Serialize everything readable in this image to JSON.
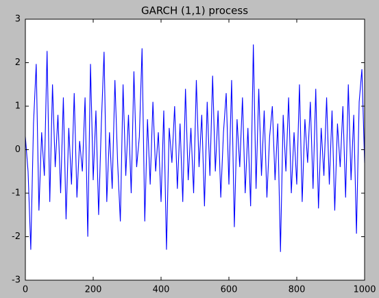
{
  "chart_data": {
    "type": "line",
    "title": "GARCH (1,1) process",
    "x": [
      0,
      8,
      16,
      24,
      32,
      40,
      48,
      56,
      64,
      72,
      80,
      88,
      96,
      104,
      112,
      120,
      128,
      136,
      144,
      152,
      160,
      168,
      176,
      184,
      192,
      200,
      208,
      216,
      224,
      232,
      240,
      248,
      256,
      264,
      272,
      280,
      288,
      296,
      304,
      312,
      320,
      328,
      336,
      344,
      352,
      360,
      368,
      376,
      384,
      392,
      400,
      408,
      416,
      424,
      432,
      440,
      448,
      456,
      464,
      472,
      480,
      488,
      496,
      504,
      512,
      520,
      528,
      536,
      544,
      552,
      560,
      568,
      576,
      584,
      592,
      600,
      608,
      616,
      624,
      632,
      640,
      648,
      656,
      664,
      672,
      680,
      688,
      696,
      704,
      712,
      720,
      728,
      736,
      744,
      752,
      760,
      768,
      776,
      784,
      792,
      800,
      808,
      816,
      824,
      832,
      840,
      848,
      856,
      864,
      872,
      880,
      888,
      896,
      904,
      912,
      920,
      928,
      936,
      944,
      952,
      960,
      968,
      976,
      984,
      992,
      1000
    ],
    "series": [
      {
        "name": "GARCH",
        "color": "#0000ff",
        "values": [
          0.3,
          -0.5,
          -2.3,
          0.6,
          1.97,
          -1.4,
          0.4,
          -0.6,
          2.27,
          -1.2,
          1.5,
          -0.4,
          0.8,
          -1.0,
          1.2,
          -1.6,
          0.5,
          -0.8,
          1.3,
          -1.1,
          0.2,
          -0.5,
          1.2,
          -2.0,
          1.97,
          -0.7,
          0.9,
          -1.5,
          0.6,
          2.25,
          -1.2,
          0.4,
          -0.9,
          1.6,
          -0.3,
          -1.65,
          1.5,
          -0.6,
          0.8,
          -1.0,
          1.8,
          -0.4,
          0.3,
          2.33,
          -1.65,
          0.7,
          -0.8,
          1.1,
          -0.5,
          0.4,
          -1.2,
          0.9,
          -2.3,
          0.5,
          -0.3,
          1.0,
          -0.9,
          0.6,
          -1.2,
          1.4,
          -0.7,
          0.5,
          -1.0,
          1.6,
          -0.4,
          0.8,
          -1.3,
          1.1,
          -0.6,
          1.7,
          -0.5,
          0.9,
          -1.1,
          0.4,
          1.3,
          -0.8,
          1.6,
          -1.78,
          0.7,
          -0.4,
          1.2,
          -1.0,
          0.5,
          -1.3,
          2.42,
          -0.9,
          1.4,
          -0.6,
          0.9,
          -1.1,
          0.3,
          1.0,
          -0.7,
          0.6,
          -2.35,
          0.8,
          -0.5,
          1.2,
          -1.0,
          0.4,
          -0.8,
          1.5,
          -1.2,
          0.7,
          -0.3,
          1.1,
          -0.9,
          1.4,
          -1.35,
          0.5,
          -0.6,
          1.2,
          -0.8,
          0.9,
          -1.4,
          0.6,
          -0.4,
          1.0,
          -1.1,
          1.5,
          -0.7,
          0.8,
          -1.93,
          1.1,
          1.85,
          -0.3
        ]
      }
    ],
    "xlim": [
      0,
      1000
    ],
    "xticks": [
      0,
      200,
      400,
      600,
      800,
      1000
    ],
    "ylim": [
      -3,
      3
    ],
    "yticks": [
      -3,
      -2,
      -1,
      0,
      1,
      2,
      3
    ],
    "grid": false
  }
}
